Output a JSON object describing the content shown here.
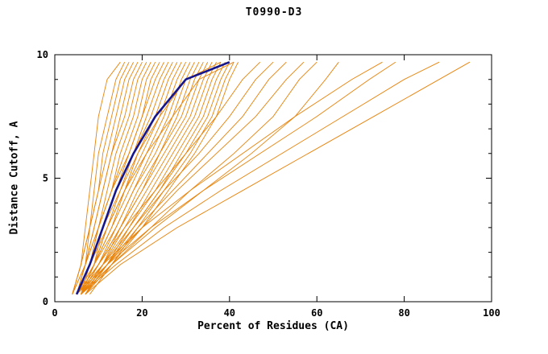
{
  "chart_data": {
    "type": "line",
    "title": "T0990-D3",
    "xlabel": "Percent of Residues (CA)",
    "ylabel": "Distance Cutoff, A",
    "xlim": [
      0,
      100
    ],
    "ylim": [
      0,
      10
    ],
    "xticks": [
      0,
      20,
      40,
      60,
      80,
      100
    ],
    "yticks": [
      0,
      5,
      10
    ],
    "yticks_minor": [
      1,
      2,
      3,
      4,
      6,
      7,
      8,
      9
    ],
    "grid": "off",
    "legend": "none",
    "model_color": "#e8830a",
    "highlight_color": "#16168c",
    "y_grid": [
      0.3,
      1.5,
      3.0,
      4.5,
      6.0,
      7.5,
      9.0,
      9.7
    ],
    "models": [
      [
        4,
        6,
        7,
        8,
        9,
        10,
        12,
        15
      ],
      [
        4,
        6,
        8,
        9,
        10,
        12,
        14,
        16
      ],
      [
        5,
        7,
        8,
        10,
        11,
        13,
        15,
        17
      ],
      [
        4,
        6,
        8,
        10,
        12,
        14,
        16,
        18
      ],
      [
        5,
        7,
        9,
        11,
        13,
        15,
        17,
        19
      ],
      [
        4,
        7,
        9,
        11,
        13,
        16,
        18,
        20
      ],
      [
        5,
        8,
        10,
        12,
        14,
        17,
        19,
        21
      ],
      [
        6,
        8,
        10,
        13,
        15,
        18,
        20,
        22
      ],
      [
        5,
        7,
        10,
        13,
        16,
        19,
        21,
        23
      ],
      [
        4,
        7,
        10,
        13,
        17,
        20,
        22,
        24
      ],
      [
        6,
        9,
        11,
        14,
        17,
        20,
        23,
        25
      ],
      [
        5,
        8,
        11,
        14,
        18,
        21,
        24,
        26
      ],
      [
        6,
        9,
        12,
        15,
        18,
        22,
        25,
        27
      ],
      [
        5,
        8,
        12,
        16,
        19,
        23,
        26,
        28
      ],
      [
        6,
        9,
        13,
        16,
        20,
        24,
        27,
        29
      ],
      [
        5,
        9,
        13,
        17,
        21,
        25,
        28,
        30
      ],
      [
        6,
        10,
        14,
        18,
        22,
        26,
        29,
        31
      ],
      [
        5,
        9,
        14,
        18,
        23,
        27,
        30,
        32
      ],
      [
        6,
        10,
        15,
        19,
        24,
        28,
        31,
        33
      ],
      [
        7,
        11,
        15,
        20,
        24,
        29,
        32,
        34
      ],
      [
        5,
        10,
        15,
        20,
        25,
        30,
        33,
        35
      ],
      [
        6,
        11,
        16,
        21,
        26,
        31,
        34,
        36
      ],
      [
        7,
        12,
        17,
        22,
        27,
        32,
        35,
        37
      ],
      [
        6,
        11,
        17,
        23,
        28,
        33,
        36,
        38
      ],
      [
        7,
        12,
        18,
        24,
        29,
        34,
        37,
        39
      ],
      [
        6,
        12,
        18,
        24,
        30,
        35,
        38,
        40
      ],
      [
        7,
        13,
        19,
        25,
        31,
        36,
        39,
        41
      ],
      [
        8,
        13,
        20,
        26,
        32,
        37,
        40,
        42
      ],
      [
        5,
        8,
        11,
        15,
        19,
        24,
        30,
        38
      ],
      [
        6,
        9,
        12,
        16,
        21,
        27,
        33,
        41
      ],
      [
        5,
        10,
        16,
        23,
        30,
        37,
        43,
        47
      ],
      [
        6,
        11,
        18,
        25,
        33,
        40,
        46,
        50
      ],
      [
        6,
        12,
        19,
        27,
        35,
        43,
        49,
        53
      ],
      [
        5,
        12,
        20,
        28,
        37,
        46,
        53,
        57
      ],
      [
        6,
        13,
        22,
        31,
        41,
        50,
        56,
        60
      ],
      [
        6,
        13,
        23,
        34,
        45,
        55,
        62,
        65
      ],
      [
        5,
        11,
        20,
        31,
        43,
        55,
        68,
        75
      ],
      [
        6,
        12,
        22,
        34,
        47,
        60,
        72,
        78
      ],
      [
        6,
        14,
        25,
        38,
        52,
        66,
        80,
        88
      ],
      [
        7,
        15,
        28,
        43,
        58,
        73,
        88,
        95
      ]
    ],
    "highlight": [
      5,
      8,
      11,
      14,
      18,
      23,
      30,
      40
    ]
  }
}
